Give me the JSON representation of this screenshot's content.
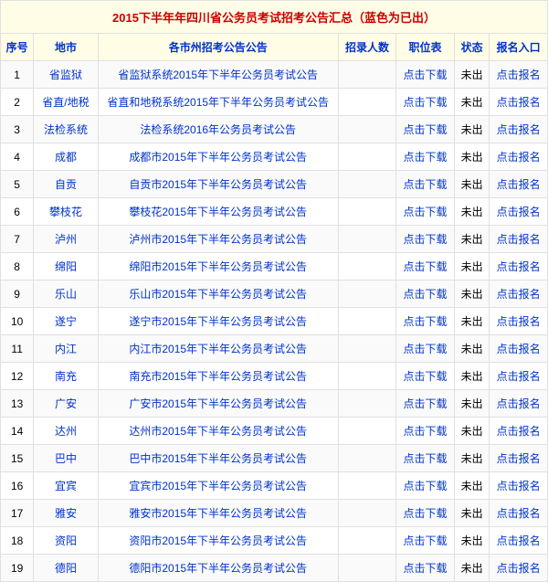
{
  "title": "2015下半年年四川省公务员考试招考公告汇总（蓝色为已出）",
  "columns": [
    "序号",
    "地市",
    "各市州招考公告公告",
    "招录人数",
    "职位表",
    "状态",
    "报名入口"
  ],
  "download_label": "点击下载",
  "status_label": "未出",
  "apply_label": "点击报名",
  "rows": [
    {
      "seq": "1",
      "region": "省监狱",
      "notice": "省监狱系统2015年下半年公务员考试公告"
    },
    {
      "seq": "2",
      "region": "省直/地税",
      "notice": "省直和地税系统2015年下半年公务员考试公告"
    },
    {
      "seq": "3",
      "region": "法检系统",
      "notice": "法检系统2016年公务员考试公告"
    },
    {
      "seq": "4",
      "region": "成都",
      "notice": "成都市2015年下半年公务员考试公告"
    },
    {
      "seq": "5",
      "region": "自贡",
      "notice": "自贡市2015年下半年公务员考试公告"
    },
    {
      "seq": "6",
      "region": "攀枝花",
      "notice": "攀枝花2015年下半年公务员考试公告"
    },
    {
      "seq": "7",
      "region": "泸州",
      "notice": "泸州市2015年下半年公务员考试公告"
    },
    {
      "seq": "8",
      "region": "绵阳",
      "notice": "绵阳市2015年下半年公务员考试公告"
    },
    {
      "seq": "9",
      "region": "乐山",
      "notice": "乐山市2015年下半年公务员考试公告"
    },
    {
      "seq": "10",
      "region": "遂宁",
      "notice": "遂宁市2015年下半年公务员考试公告"
    },
    {
      "seq": "11",
      "region": "内江",
      "notice": "内江市2015年下半年公务员考试公告"
    },
    {
      "seq": "12",
      "region": "南充",
      "notice": "南充市2015年下半年公务员考试公告"
    },
    {
      "seq": "13",
      "region": "广安",
      "notice": "广安市2015年下半年公务员考试公告"
    },
    {
      "seq": "14",
      "region": "达州",
      "notice": "达州市2015年下半年公务员考试公告"
    },
    {
      "seq": "15",
      "region": "巴中",
      "notice": "巴中市2015年下半年公务员考试公告"
    },
    {
      "seq": "16",
      "region": "宜宾",
      "notice": "宜宾市2015年下半年公务员考试公告"
    },
    {
      "seq": "17",
      "region": "雅安",
      "notice": "雅安市2015年下半年公务员考试公告"
    },
    {
      "seq": "18",
      "region": "资阳",
      "notice": "资阳市2015年下半年公务员考试公告"
    },
    {
      "seq": "19",
      "region": "德阳",
      "notice": "德阳市2015年下半年公务员考试公告"
    }
  ]
}
